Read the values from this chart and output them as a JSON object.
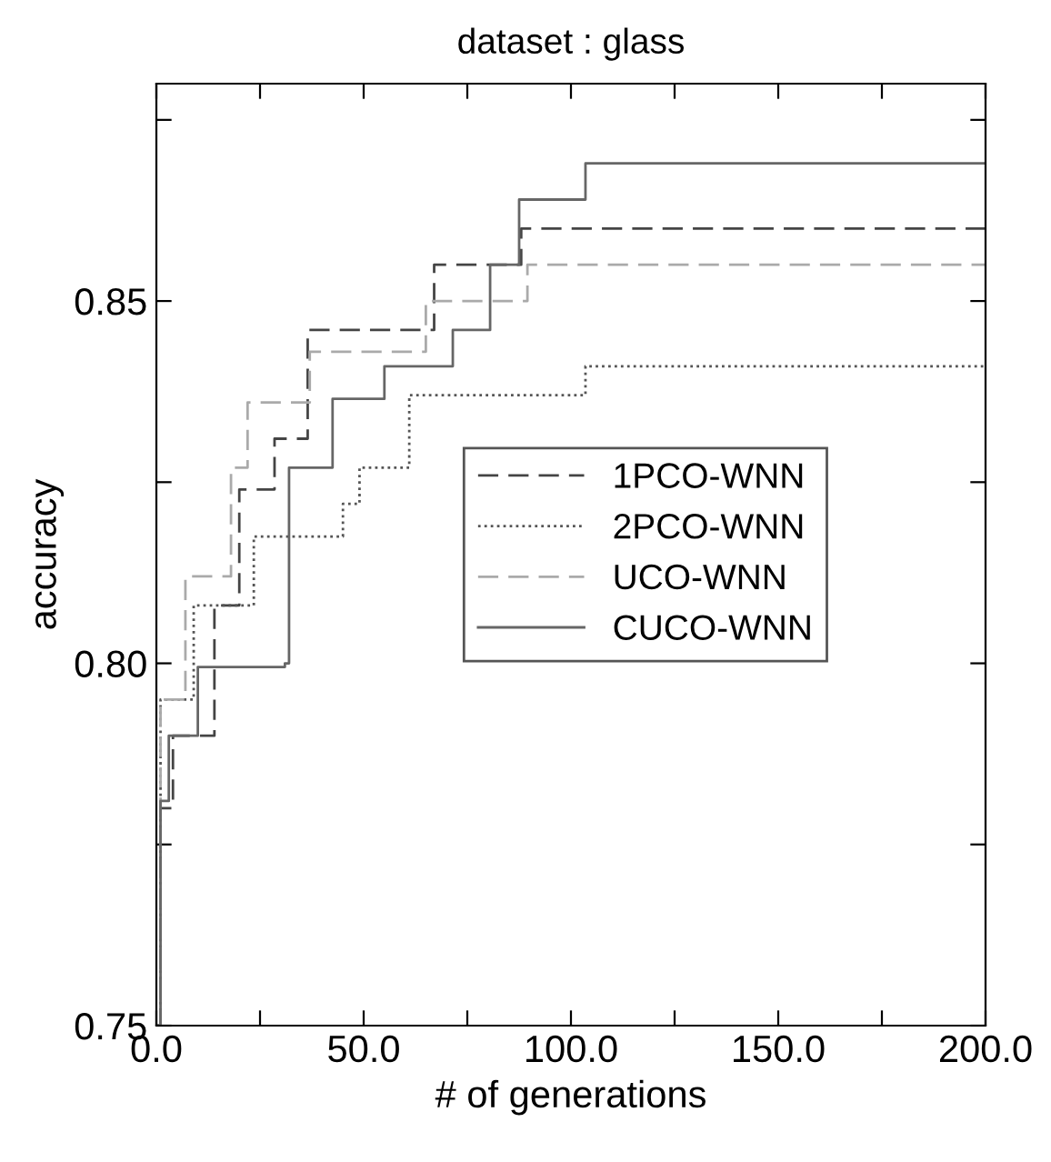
{
  "chart_data": {
    "type": "step",
    "title": "dataset : glass",
    "xlabel": "# of generations",
    "ylabel": "accuracy",
    "xlim": [
      0,
      200
    ],
    "ylim": [
      0.75,
      0.88
    ],
    "xticks": [
      {
        "value": 0,
        "label": "0.0"
      },
      {
        "value": 25,
        "label": null
      },
      {
        "value": 50,
        "label": "50.0"
      },
      {
        "value": 75,
        "label": null
      },
      {
        "value": 100,
        "label": "100.0"
      },
      {
        "value": 125,
        "label": null
      },
      {
        "value": 150,
        "label": "150.0"
      },
      {
        "value": 175,
        "label": null
      },
      {
        "value": 200,
        "label": "200.0"
      }
    ],
    "yticks": [
      {
        "value": 0.75,
        "label": "0.75"
      },
      {
        "value": 0.775,
        "label": null
      },
      {
        "value": 0.8,
        "label": "0.80"
      },
      {
        "value": 0.825,
        "label": null
      },
      {
        "value": 0.85,
        "label": "0.85"
      },
      {
        "value": 0.875,
        "label": null
      }
    ],
    "legend": "center right",
    "grid": false,
    "marker": "none",
    "series": [
      {
        "name": "1PCO-WNN",
        "color": "#444444",
        "line_style": "dashed",
        "x": [
          0,
          1,
          4,
          14,
          20,
          28.5,
          36.5,
          67,
          88,
          200
        ],
        "values": [
          0.75,
          0.78,
          0.79,
          0.808,
          0.824,
          0.831,
          0.846,
          0.855,
          0.86,
          0.86
        ]
      },
      {
        "name": "2PCO-WNN",
        "color": "#555555",
        "line_style": "dotted",
        "x": [
          0,
          1,
          9,
          23.5,
          45,
          49,
          61,
          103.5,
          200
        ],
        "values": [
          0.75,
          0.795,
          0.808,
          0.8175,
          0.822,
          0.827,
          0.837,
          0.841,
          0.841
        ]
      },
      {
        "name": "UCO-WNN",
        "color": "#aaaaaa",
        "line_style": "dashed",
        "x": [
          0,
          1,
          7,
          18,
          22,
          37,
          65,
          89.5,
          200
        ],
        "values": [
          0.75,
          0.795,
          0.812,
          0.827,
          0.836,
          0.843,
          0.85,
          0.855,
          0.855
        ]
      },
      {
        "name": "CUCO-WNN",
        "color": "#666666",
        "line_style": "solid",
        "x": [
          0,
          1,
          3,
          10,
          31,
          32,
          42.5,
          55,
          71.5,
          80.5,
          87.5,
          103.5,
          200
        ],
        "values": [
          0.75,
          0.781,
          0.79,
          0.7995,
          0.8,
          0.827,
          0.8365,
          0.841,
          0.846,
          0.855,
          0.864,
          0.869,
          0.869
        ]
      }
    ]
  }
}
